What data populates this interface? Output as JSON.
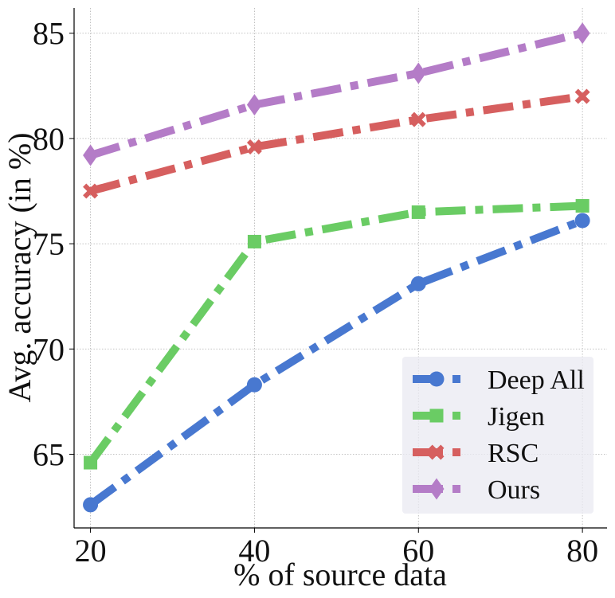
{
  "chart_data": {
    "type": "line",
    "title": "",
    "xlabel": "% of source data",
    "ylabel": "Avg. accuracy (in %)",
    "x": [
      20,
      40,
      60,
      80
    ],
    "xticks": [
      "20",
      "40",
      "60",
      "80"
    ],
    "yticks": [
      "65",
      "70",
      "75",
      "80",
      "85"
    ],
    "xlim": [
      18,
      83
    ],
    "ylim": [
      61.5,
      86.2
    ],
    "grid": true,
    "legend_position": "lower-right",
    "series": [
      {
        "name": "Deep All",
        "values": [
          62.6,
          68.3,
          73.1,
          76.1
        ],
        "color": "#4878d0",
        "marker": "circle"
      },
      {
        "name": "Jigen",
        "values": [
          64.6,
          75.1,
          76.5,
          76.8
        ],
        "color": "#6acc64",
        "marker": "square"
      },
      {
        "name": "RSC",
        "values": [
          77.5,
          79.6,
          80.9,
          82.0
        ],
        "color": "#d65f5f",
        "marker": "x"
      },
      {
        "name": "Ours",
        "values": [
          79.2,
          81.6,
          83.1,
          85.0
        ],
        "color": "#b47cc7",
        "marker": "diamond"
      }
    ]
  }
}
